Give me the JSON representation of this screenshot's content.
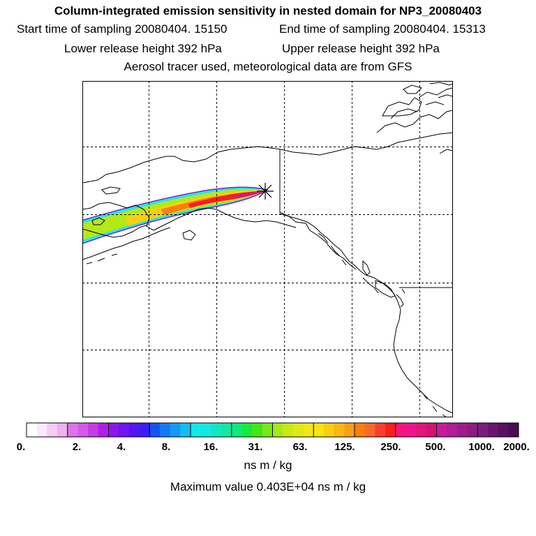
{
  "header": {
    "title": "Column-integrated emission sensitivity in nested domain for NP3_20080403",
    "start_label": "Start time of sampling 20080404. 15150",
    "end_label": "End time of sampling 20080404. 15313",
    "lower_label": "Lower release height  392 hPa",
    "upper_label": "Upper release height  392 hPa",
    "tracer_label": "Aerosol tracer used, meteorological data are from GFS"
  },
  "colorbar": {
    "tick_labels": [
      "0.",
      "2.",
      "4.",
      "8.",
      "16.",
      "31.",
      "63.",
      "125.",
      "250.",
      "500.",
      "1000.",
      "2000."
    ],
    "colors": [
      [
        "#ffffff",
        "#fbe8fb",
        "#f4ccf4",
        "#eeb2ee"
      ],
      [
        "#de73e8",
        "#d65ae8",
        "#c43ce6",
        "#b21ee6"
      ],
      [
        "#8d17ee",
        "#6f17ef",
        "#5414f4",
        "#3c1ef5"
      ],
      [
        "#1457f0",
        "#1479f4",
        "#149af4",
        "#14bdf4"
      ],
      [
        "#12e8e8",
        "#12e8e0",
        "#12e8c0",
        "#12e8a0"
      ],
      [
        "#10e880",
        "#18e840",
        "#40e818",
        "#78e818"
      ],
      [
        "#a8e818",
        "#c8e818",
        "#e2e818",
        "#f0e818"
      ],
      [
        "#f8e410",
        "#f8ce10",
        "#f8b810",
        "#f8a010"
      ],
      [
        "#f87f10",
        "#f86828",
        "#f84030",
        "#f81e1e"
      ],
      [
        "#f8147a",
        "#f0148c",
        "#e2147e",
        "#d41472"
      ],
      [
        "#c41c9c",
        "#b21c94",
        "#a01c8c",
        "#8c1c84"
      ],
      [
        "#7c1c7c",
        "#6a1470",
        "#5a1062",
        "#4a0c52"
      ]
    ],
    "units": "ns m / kg",
    "max_value_label": "Maximum value  0.403E+04 ns m / kg"
  },
  "plume_colors": [
    "#1ee8f0",
    "#b4e818",
    "#f8d010",
    "#f88010",
    "#f81e1e",
    "#e01478"
  ],
  "release_point_icon": "star-burst-icon"
}
